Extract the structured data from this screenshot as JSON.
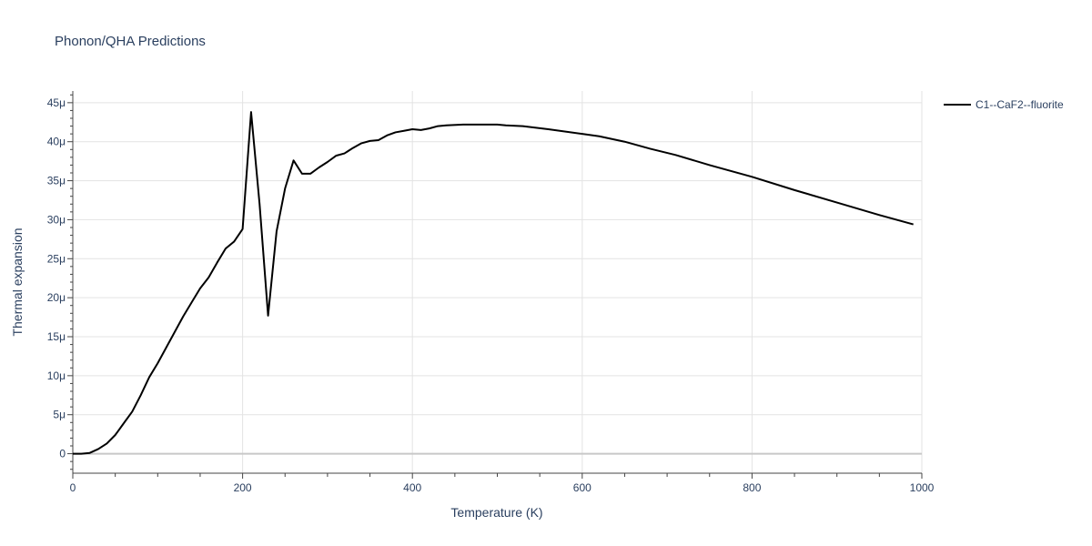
{
  "chart_data": {
    "type": "line",
    "title": "Phonon/QHA Predictions",
    "xlabel": "Temperature (K)",
    "ylabel": "Thermal expansion",
    "xlim": [
      0,
      1000
    ],
    "ylim": [
      -2.5e-06,
      4.65e-05
    ],
    "grid": true,
    "legend_position": "top-right",
    "x_ticks": [
      {
        "value": 0,
        "label": "0"
      },
      {
        "value": 200,
        "label": "200"
      },
      {
        "value": 400,
        "label": "400"
      },
      {
        "value": 600,
        "label": "600"
      },
      {
        "value": 800,
        "label": "800"
      },
      {
        "value": 1000,
        "label": "1000"
      }
    ],
    "y_ticks": [
      {
        "value": 0,
        "label": "0"
      },
      {
        "value": 5e-06,
        "label": "5μ"
      },
      {
        "value": 1e-05,
        "label": "10μ"
      },
      {
        "value": 1.5e-05,
        "label": "15μ"
      },
      {
        "value": 2e-05,
        "label": "20μ"
      },
      {
        "value": 2.5e-05,
        "label": "25μ"
      },
      {
        "value": 3e-05,
        "label": "30μ"
      },
      {
        "value": 3.5e-05,
        "label": "35μ"
      },
      {
        "value": 4e-05,
        "label": "40μ"
      },
      {
        "value": 4.5e-05,
        "label": "45μ"
      }
    ],
    "series": [
      {
        "name": "C1--CaF2--fluorite",
        "color": "#000000",
        "x": [
          0,
          10,
          20,
          30,
          40,
          50,
          60,
          70,
          80,
          90,
          100,
          110,
          120,
          130,
          140,
          150,
          160,
          170,
          180,
          190,
          200,
          210,
          220,
          230,
          240,
          250,
          260,
          270,
          280,
          290,
          300,
          310,
          320,
          330,
          340,
          350,
          360,
          370,
          380,
          390,
          400,
          410,
          420,
          430,
          440,
          460,
          480,
          500,
          510,
          530,
          560,
          600,
          620,
          650,
          680,
          710,
          750,
          800,
          850,
          900,
          950,
          990
        ],
        "y": [
          0,
          0,
          1e-07,
          6e-07,
          1.3e-06,
          2.4e-06,
          3.9e-06,
          5.4e-06,
          7.5e-06,
          9.8e-06,
          1.16e-05,
          1.36e-05,
          1.56e-05,
          1.76e-05,
          1.94e-05,
          2.12e-05,
          2.26e-05,
          2.45e-05,
          2.63e-05,
          2.72e-05,
          2.88e-05,
          4.38e-05,
          3.2e-05,
          1.77e-05,
          2.85e-05,
          3.4e-05,
          3.76e-05,
          3.59e-05,
          3.59e-05,
          3.67e-05,
          3.74e-05,
          3.82e-05,
          3.85e-05,
          3.92e-05,
          3.98e-05,
          4.01e-05,
          4.02e-05,
          4.08e-05,
          4.12e-05,
          4.14e-05,
          4.16e-05,
          4.15e-05,
          4.17e-05,
          4.2e-05,
          4.21e-05,
          4.22e-05,
          4.22e-05,
          4.22e-05,
          4.21e-05,
          4.2e-05,
          4.16e-05,
          4.1e-05,
          4.07e-05,
          4e-05,
          3.91e-05,
          3.83e-05,
          3.7e-05,
          3.55e-05,
          3.38e-05,
          3.22e-05,
          3.06e-05,
          2.94e-05
        ]
      }
    ]
  }
}
